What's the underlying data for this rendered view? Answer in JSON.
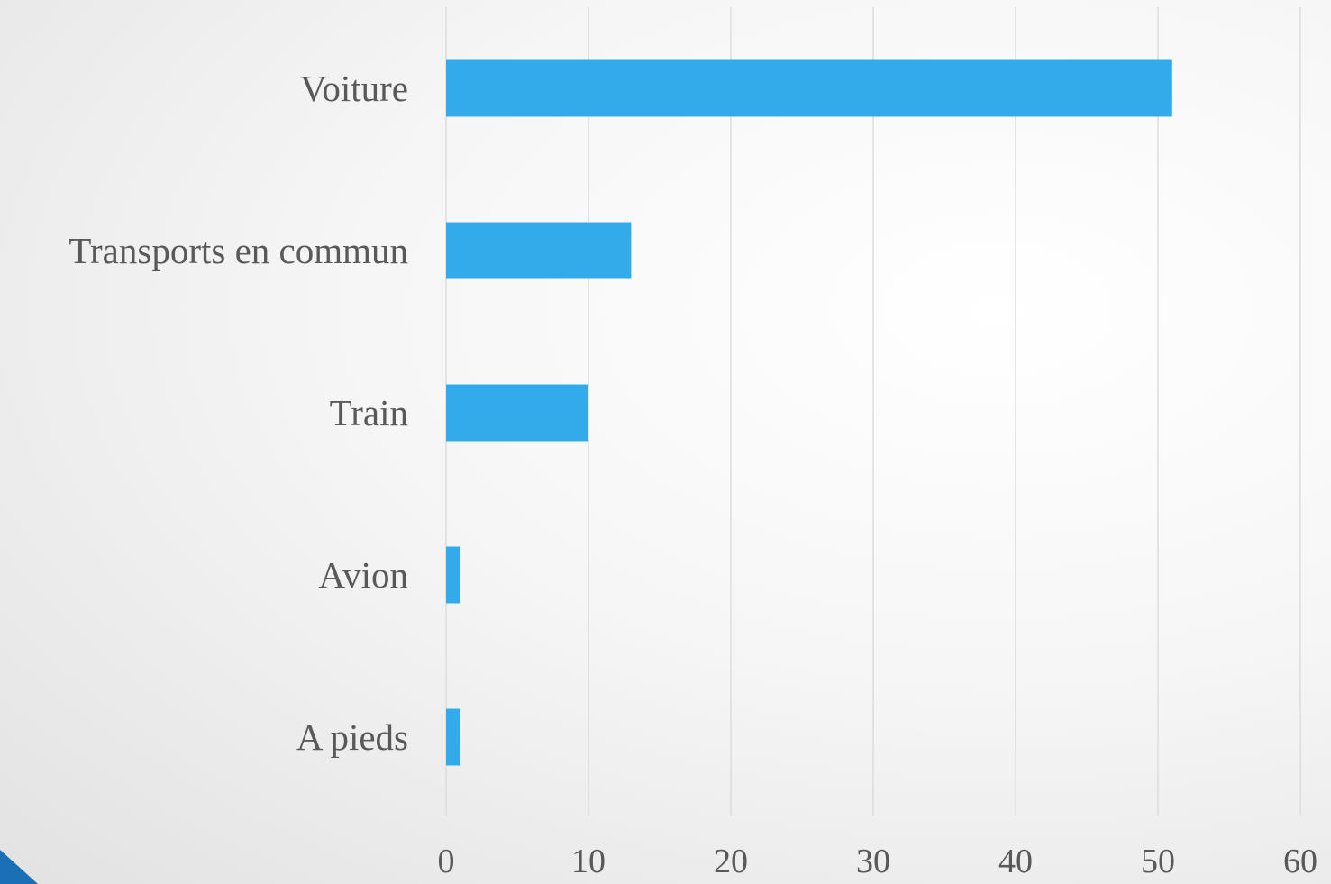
{
  "chart_data": {
    "type": "bar",
    "orientation": "horizontal",
    "categories": [
      "Voiture",
      "Transports en commun",
      "Train",
      "Avion",
      "A pieds"
    ],
    "values": [
      51,
      13,
      10,
      1,
      1
    ],
    "xlim": [
      0,
      60
    ],
    "xticks": [
      "0",
      "10",
      "20",
      "30",
      "40",
      "50",
      "60"
    ],
    "grid": true,
    "bar_color": "#33abea",
    "grid_color": "#d9d9d9",
    "label_color": "#595959"
  },
  "decor": {
    "corner_color": "#1a6fb5"
  }
}
